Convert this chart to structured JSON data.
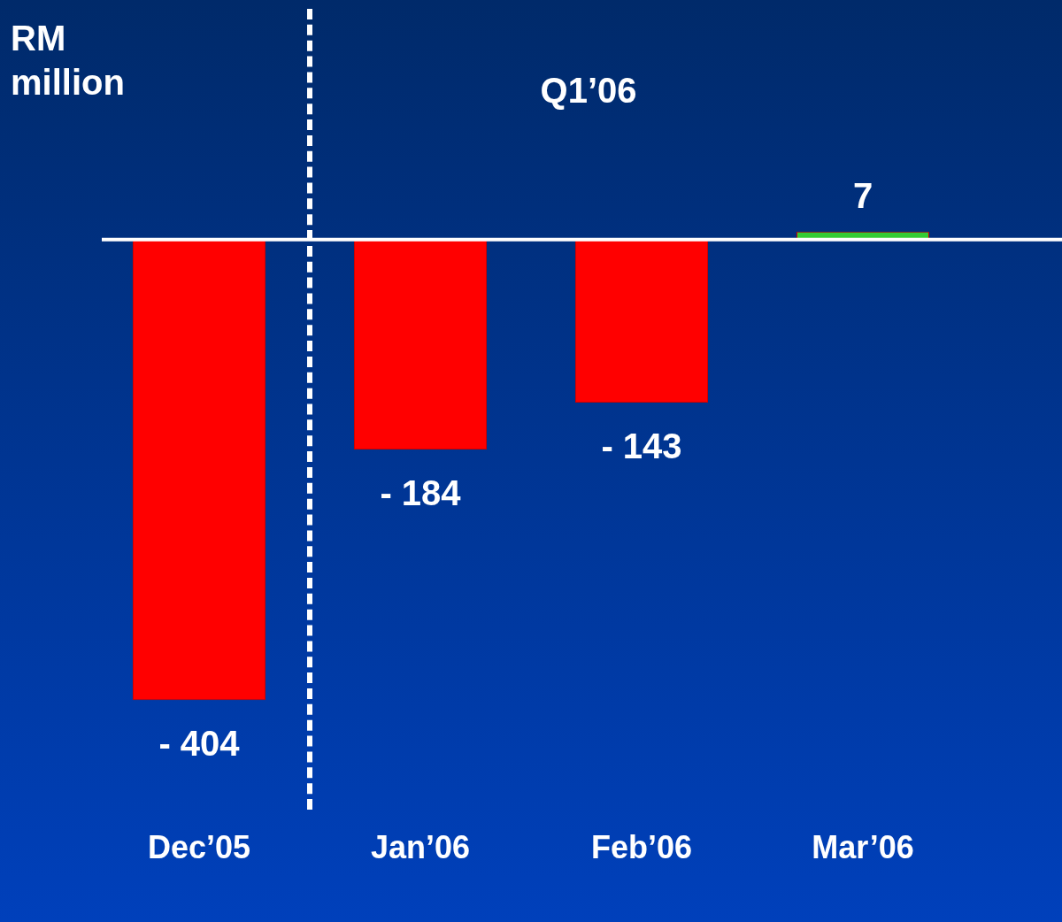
{
  "chart_data": {
    "type": "bar",
    "ylabel": "RM million",
    "annotations": [
      "Q1’06"
    ],
    "categories": [
      "Dec’05",
      "Jan’06",
      "Feb’06",
      "Mar’06"
    ],
    "values": [
      -404,
      -184,
      -143,
      7
    ],
    "colors": [
      "#ff0000",
      "#ff0000",
      "#ff0000",
      "#33cc33"
    ],
    "value_labels": [
      "- 404",
      "- 184",
      "- 143",
      "7"
    ],
    "grid": false,
    "legend": false
  }
}
